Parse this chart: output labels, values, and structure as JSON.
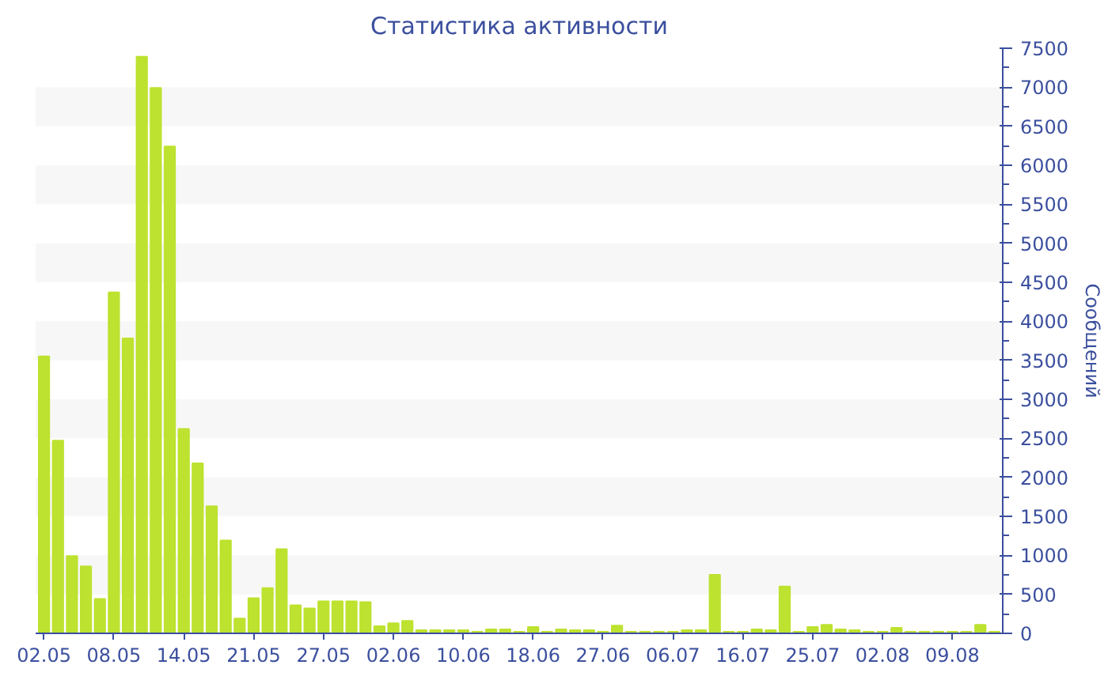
{
  "chart_data": {
    "type": "bar",
    "title": "Статистика активности",
    "ylabel": "Сообщений",
    "categories": [
      "02.05",
      null,
      null,
      null,
      null,
      "08.05",
      null,
      null,
      null,
      null,
      "14.05",
      null,
      null,
      null,
      null,
      "21.05",
      null,
      null,
      null,
      null,
      "27.05",
      null,
      null,
      null,
      null,
      "02.06",
      null,
      null,
      null,
      null,
      "10.06",
      null,
      null,
      null,
      null,
      "18.06",
      null,
      null,
      null,
      null,
      "27.06",
      null,
      null,
      null,
      null,
      "06.07",
      null,
      null,
      null,
      null,
      "16.07",
      null,
      null,
      null,
      null,
      "25.07",
      null,
      null,
      null,
      null,
      "02.08",
      null,
      null,
      null,
      null,
      "09.08",
      null,
      null,
      null
    ],
    "values": [
      3550,
      2470,
      990,
      860,
      440,
      4370,
      3780,
      7390,
      6990,
      6240,
      2620,
      2180,
      1630,
      1190,
      190,
      450,
      580,
      1080,
      360,
      320,
      410,
      410,
      410,
      400,
      90,
      130,
      160,
      40,
      40,
      40,
      40,
      20,
      50,
      50,
      20,
      80,
      20,
      50,
      40,
      40,
      20,
      100,
      20,
      20,
      20,
      20,
      40,
      40,
      750,
      20,
      20,
      50,
      40,
      600,
      20,
      80,
      110,
      50,
      40,
      20,
      20,
      70,
      20,
      20,
      20,
      20,
      20,
      110,
      20
    ],
    "color": "#bde22f",
    "ylim": [
      0,
      7500
    ],
    "yticks": [
      0,
      500,
      1000,
      1500,
      2000,
      2500,
      3000,
      3500,
      4000,
      4500,
      5000,
      5500,
      6000,
      6500,
      7000,
      7500
    ],
    "bands": [
      {
        "axis": "y",
        "from": 500,
        "to": 1000,
        "color": "#f7f7f7"
      },
      {
        "axis": "y",
        "from": 1500,
        "to": 2000,
        "color": "#f7f7f7"
      },
      {
        "axis": "y",
        "from": 2500,
        "to": 3000,
        "color": "#f7f7f7"
      },
      {
        "axis": "y",
        "from": 3500,
        "to": 4000,
        "color": "#f7f7f7"
      },
      {
        "axis": "y",
        "from": 4500,
        "to": 5000,
        "color": "#f7f7f7"
      },
      {
        "axis": "y",
        "from": 5500,
        "to": 6000,
        "color": "#f7f7f7"
      },
      {
        "axis": "y",
        "from": 6500,
        "to": 7000,
        "color": "#f7f7f7"
      }
    ]
  }
}
